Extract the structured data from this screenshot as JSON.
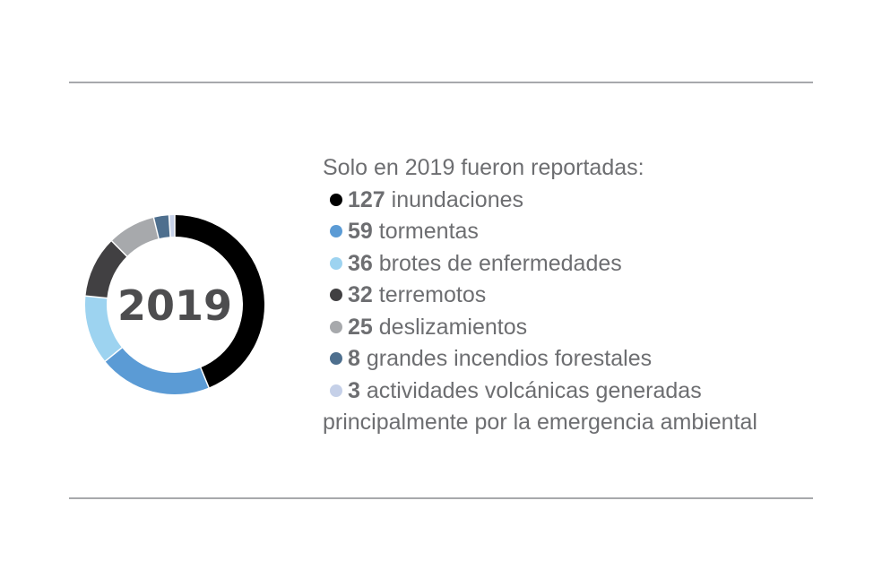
{
  "chart_data": {
    "type": "pie",
    "center_label": "2019",
    "intro": "Solo en 2019 fueron reportadas:",
    "slices": [
      {
        "value": 127,
        "label": "inundaciones",
        "color": "#000000"
      },
      {
        "value": 59,
        "label": "tormentas",
        "color": "#5b9bd5"
      },
      {
        "value": 36,
        "label": "brotes de enfermedades",
        "color": "#9dd3f0"
      },
      {
        "value": 32,
        "label": "terremotos",
        "color": "#414042"
      },
      {
        "value": 25,
        "label": "deslizamientos",
        "color": "#a7a9ac"
      },
      {
        "value": 8,
        "label": "grandes incendios forestales",
        "color": "#4e6f8e"
      },
      {
        "value": 3,
        "label": "actividades volcánicas generadas",
        "color": "#c5d0e8"
      }
    ],
    "last_line": "principalmente por la emergencia ambiental"
  }
}
